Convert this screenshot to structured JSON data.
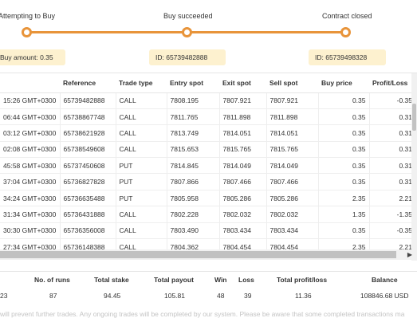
{
  "tracker": {
    "steps": [
      {
        "label": "Attempting to Buy",
        "info": "Buy amount: 0.35"
      },
      {
        "label": "Buy succeeded",
        "info": "ID: 65739482888"
      },
      {
        "label": "Contract closed",
        "info": "ID: 65739498328"
      }
    ],
    "accent": "#e8943a"
  },
  "table": {
    "headers": [
      "",
      "Reference",
      "Trade type",
      "Entry spot",
      "Exit spot",
      "Sell spot",
      "Buy price",
      "Profit/Loss"
    ],
    "rows": [
      {
        "time": "15:26 GMT+0300",
        "ref": "65739482888",
        "type": "CALL",
        "entry": "7808.195",
        "exit": "7807.921",
        "sell": "7807.921",
        "buy": "0.35",
        "pl": "-0.35",
        "sign": "neg"
      },
      {
        "time": "06:44 GMT+0300",
        "ref": "65738867748",
        "type": "CALL",
        "entry": "7811.765",
        "exit": "7811.898",
        "sell": "7811.898",
        "buy": "0.35",
        "pl": "0.31",
        "sign": "pos"
      },
      {
        "time": "03:12 GMT+0300",
        "ref": "65738621928",
        "type": "CALL",
        "entry": "7813.749",
        "exit": "7814.051",
        "sell": "7814.051",
        "buy": "0.35",
        "pl": "0.31",
        "sign": "pos"
      },
      {
        "time": "02:08 GMT+0300",
        "ref": "65738549608",
        "type": "CALL",
        "entry": "7815.653",
        "exit": "7815.765",
        "sell": "7815.765",
        "buy": "0.35",
        "pl": "0.31",
        "sign": "pos"
      },
      {
        "time": "45:58 GMT+0300",
        "ref": "65737450608",
        "type": "PUT",
        "entry": "7814.845",
        "exit": "7814.049",
        "sell": "7814.049",
        "buy": "0.35",
        "pl": "0.31",
        "sign": "pos"
      },
      {
        "time": "37:04 GMT+0300",
        "ref": "65736827828",
        "type": "PUT",
        "entry": "7807.866",
        "exit": "7807.466",
        "sell": "7807.466",
        "buy": "0.35",
        "pl": "0.31",
        "sign": "pos"
      },
      {
        "time": "34:24 GMT+0300",
        "ref": "65736635488",
        "type": "PUT",
        "entry": "7805.958",
        "exit": "7805.286",
        "sell": "7805.286",
        "buy": "2.35",
        "pl": "2.21",
        "sign": "pos"
      },
      {
        "time": "31:34 GMT+0300",
        "ref": "65736431888",
        "type": "CALL",
        "entry": "7802.228",
        "exit": "7802.032",
        "sell": "7802.032",
        "buy": "1.35",
        "pl": "-1.35",
        "sign": "neg"
      },
      {
        "time": "30:30 GMT+0300",
        "ref": "65736356008",
        "type": "CALL",
        "entry": "7803.490",
        "exit": "7803.434",
        "sell": "7803.434",
        "buy": "0.35",
        "pl": "-0.35",
        "sign": "neg"
      },
      {
        "time": "27:34 GMT+0300",
        "ref": "65736148388",
        "type": "CALL",
        "entry": "7804.362",
        "exit": "7804.454",
        "sell": "7804.454",
        "buy": "2.35",
        "pl": "2.21",
        "sign": "pos"
      }
    ]
  },
  "summary": {
    "headers": {
      "runs": "No. of runs",
      "stake": "Total stake",
      "payout": "Total payout",
      "win": "Win",
      "loss": "Loss",
      "profit": "Total profit/loss",
      "balance": "Balance"
    },
    "values": {
      "first": "23",
      "runs": "87",
      "stake": "94.45",
      "payout": "105.81",
      "win": "48",
      "loss": "39",
      "profit": "11.36",
      "balance": "108846.68 USD"
    }
  },
  "footer_note": "will prevent further trades. Any ongoing trades will be completed by our system. Please be aware that some completed transactions ma",
  "colors": {
    "positive": "#2aa24b",
    "negative": "#e31c4b",
    "info_bg": "#fdf1cf"
  }
}
